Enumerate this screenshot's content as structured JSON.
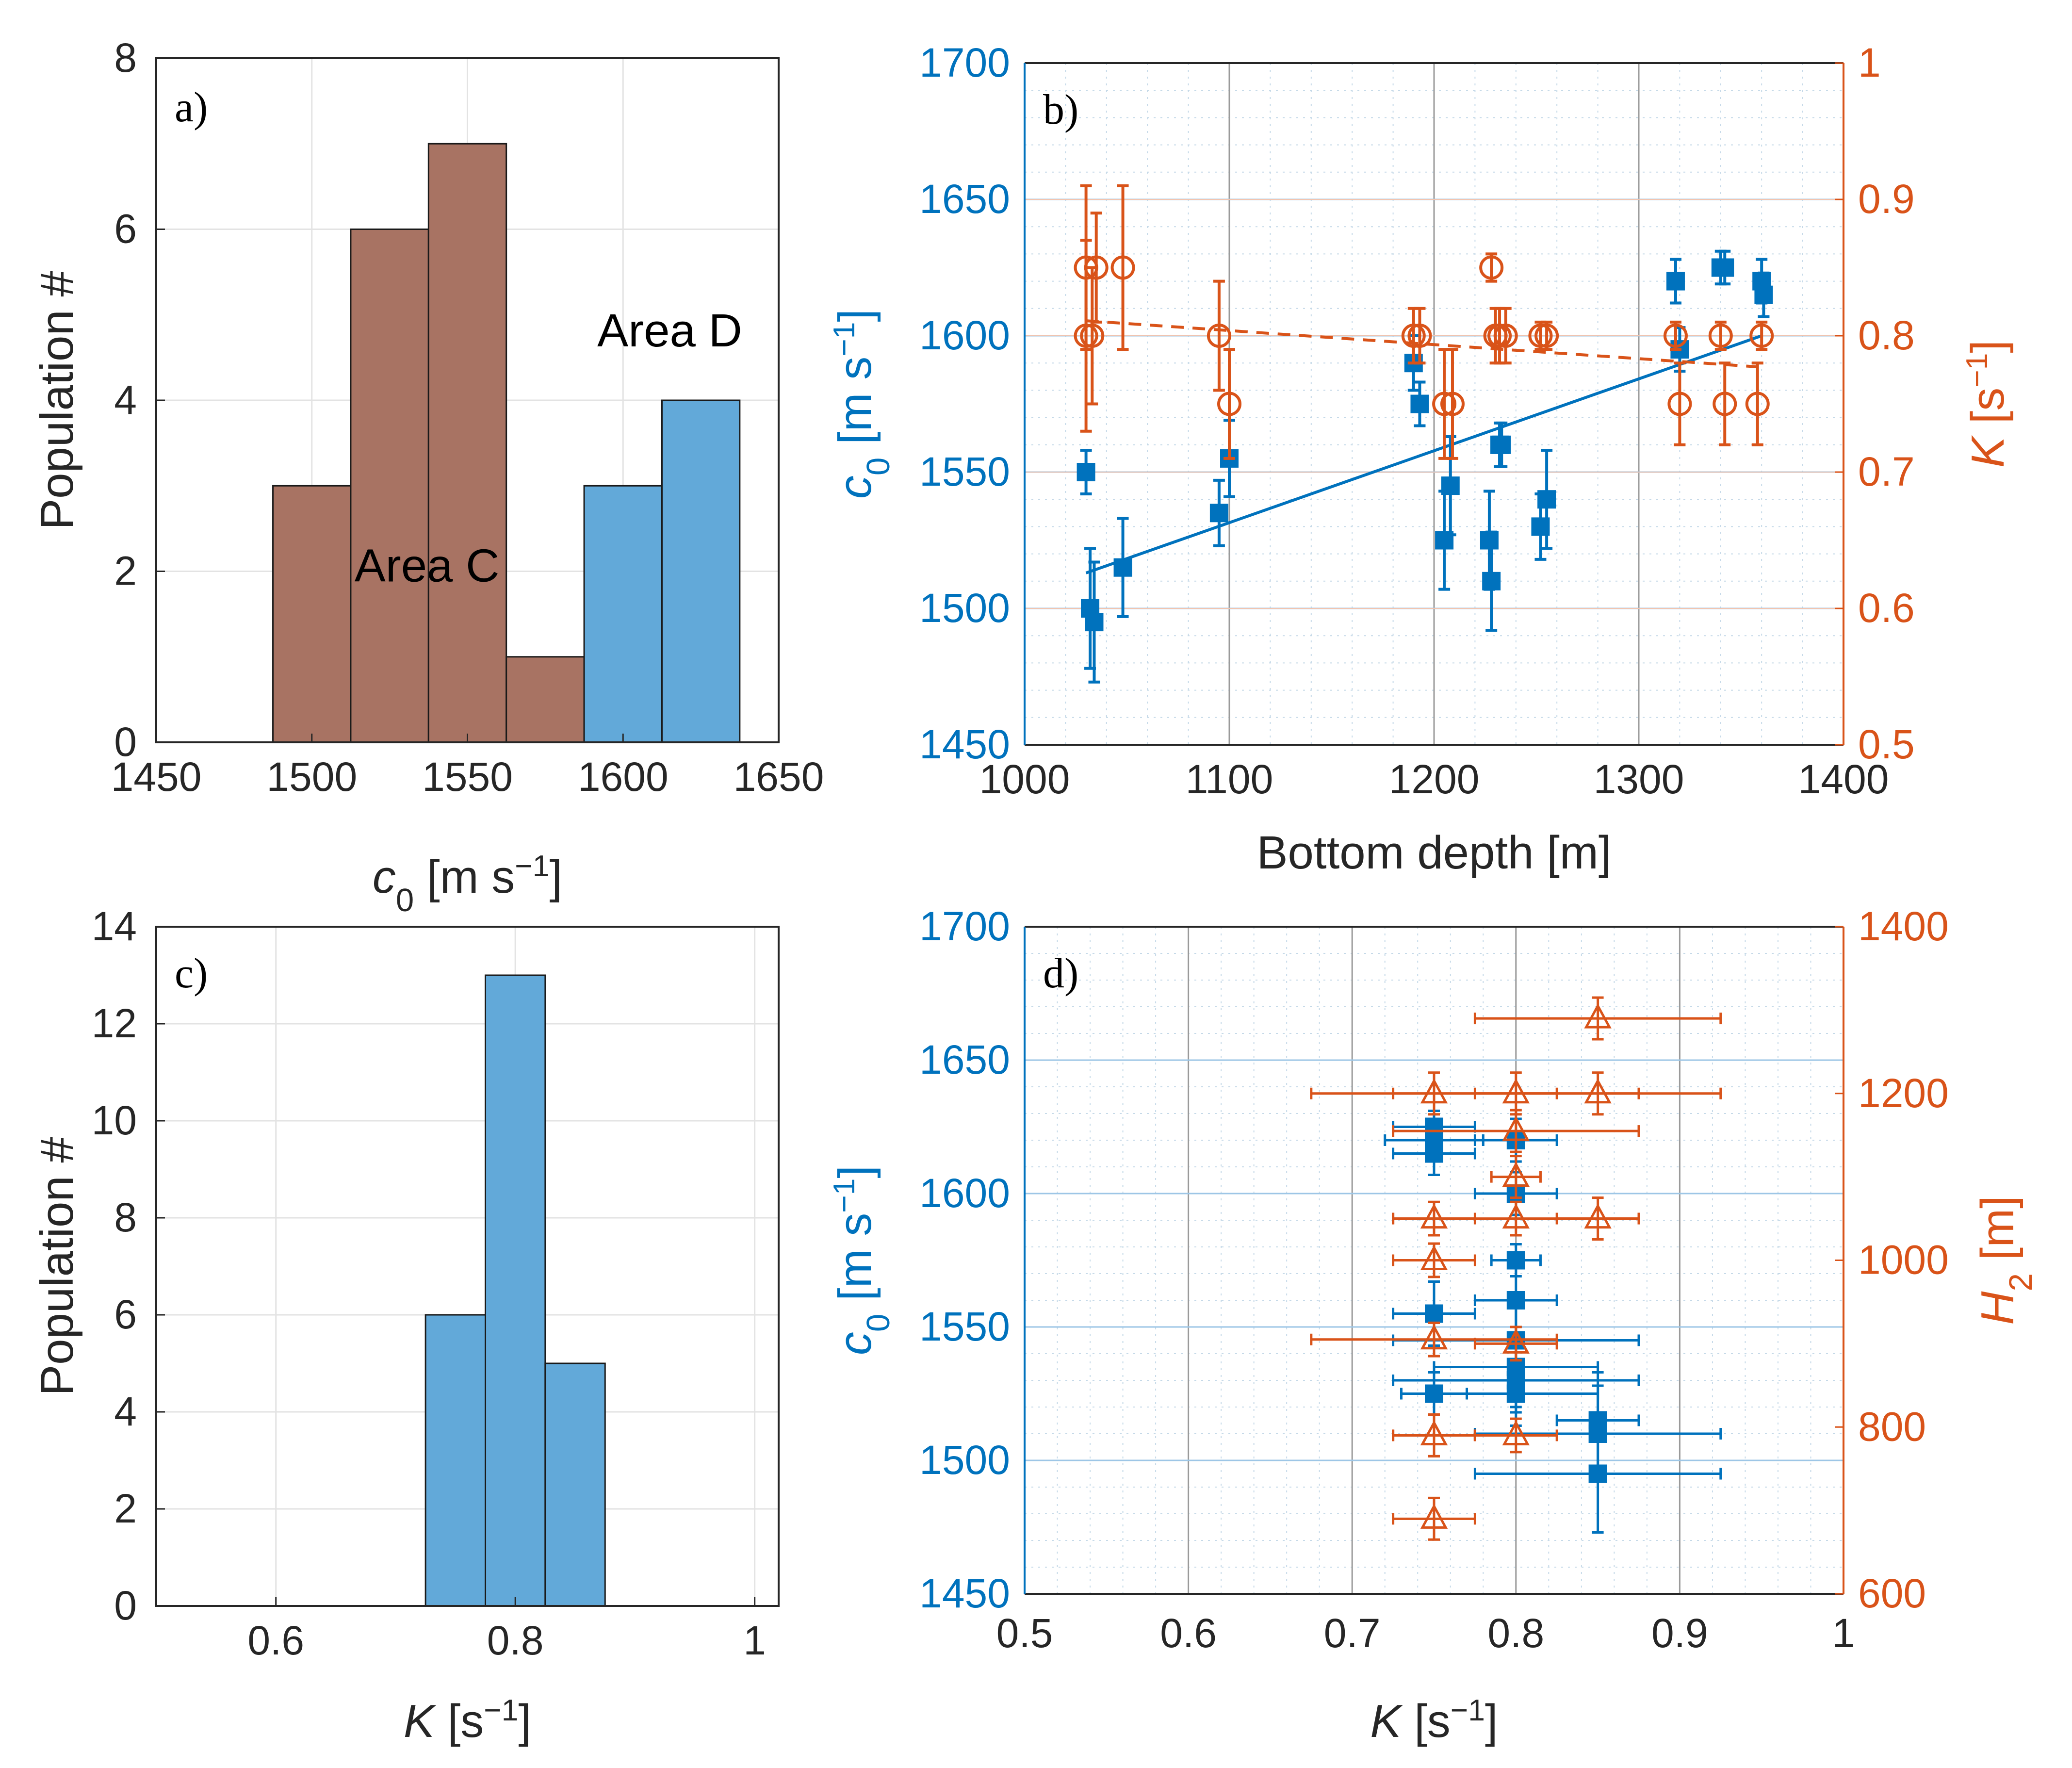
{
  "colors": {
    "blue": "#0072bd",
    "orange": "#d95319",
    "hist_brown": "#a87363",
    "hist_blue": "#62a9d9",
    "grid": "#e3e3e3",
    "axis": "#262626"
  },
  "chart_data": [
    {
      "panel": "a",
      "panel_label": "a)",
      "type": "bar",
      "subtype": "histogram",
      "xlabel": {
        "symbol": "c",
        "sub": "0",
        "units": "  [m s",
        "sup": "−1",
        "close": "]"
      },
      "ylabel": "Population #",
      "xlim": [
        1450,
        1650
      ],
      "ylim": [
        0,
        8
      ],
      "xticks": [
        1450,
        1500,
        1550,
        1600,
        1650
      ],
      "yticks": [
        0,
        2,
        4,
        6,
        8
      ],
      "bin_edges": [
        1487.5,
        1512.5,
        1537.5,
        1562.5,
        1587.5,
        1612.5,
        1637.5
      ],
      "series": [
        {
          "name": "Area C",
          "color_key": "hist_brown",
          "values": [
            3,
            6,
            7,
            1,
            1,
            0
          ]
        },
        {
          "name": "Area D",
          "color_key": "hist_blue",
          "values": [
            0,
            0,
            0,
            0,
            3,
            4
          ]
        }
      ],
      "annotations": [
        {
          "text": "Area C",
          "x": 1537,
          "y": 2.05
        },
        {
          "text": "Area D",
          "x": 1615,
          "y": 4.8
        }
      ]
    },
    {
      "panel": "b",
      "panel_label": "b)",
      "type": "scatter",
      "xlabel": "Bottom depth [m]",
      "xlim": [
        1000,
        1400
      ],
      "xticks": [
        1000,
        1100,
        1200,
        1300,
        1400
      ],
      "y_left": {
        "label": {
          "symbol": "c",
          "sub": "0",
          "units": "  [m s",
          "sup": "−1",
          "close": "]"
        },
        "lim": [
          1450,
          1700
        ],
        "ticks": [
          1450,
          1500,
          1550,
          1600,
          1650,
          1700
        ]
      },
      "y_right": {
        "label": {
          "symbol": "K",
          "units": "  [s",
          "sup": "−1",
          "close": "]"
        },
        "lim": [
          0.5,
          1.0
        ],
        "ticks": [
          "0.5",
          "0.6",
          "0.7",
          "0.8",
          "0.9",
          "1"
        ]
      },
      "series": [
        {
          "name": "c0",
          "axis": "left",
          "marker": "square",
          "color_key": "blue",
          "x": [
            1030,
            1032,
            1034,
            1048,
            1095,
            1100,
            1190,
            1193,
            1205,
            1208,
            1227,
            1228,
            1232,
            1233,
            1252,
            1255,
            1318,
            1320,
            1340,
            1342,
            1360,
            1361
          ],
          "y": [
            1550,
            1500,
            1495,
            1515,
            1535,
            1555,
            1590,
            1575,
            1525,
            1545,
            1525,
            1510,
            1560,
            1560,
            1530,
            1540,
            1620,
            1595,
            1625,
            1625,
            1620,
            1615
          ],
          "err": [
            8,
            22,
            22,
            18,
            12,
            14,
            10,
            8,
            18,
            18,
            18,
            18,
            8,
            8,
            12,
            18,
            8,
            8,
            6,
            6,
            8,
            8
          ]
        },
        {
          "name": "K",
          "axis": "right",
          "marker": "circle-open",
          "color_key": "orange",
          "x": [
            1030,
            1030,
            1033,
            1035,
            1048,
            1095,
            1100,
            1190,
            1193,
            1205,
            1209,
            1228,
            1230,
            1232,
            1235,
            1252,
            1255,
            1318,
            1320,
            1340,
            1342,
            1358,
            1360
          ],
          "y": [
            0.85,
            0.8,
            0.8,
            0.85,
            0.85,
            0.8,
            0.75,
            0.8,
            0.8,
            0.75,
            0.75,
            0.85,
            0.8,
            0.8,
            0.8,
            0.8,
            0.8,
            0.8,
            0.75,
            0.8,
            0.75,
            0.75,
            0.8
          ],
          "err": [
            0.06,
            0.07,
            0.05,
            0.04,
            0.06,
            0.04,
            0.04,
            0.02,
            0.02,
            0.04,
            0.04,
            0.01,
            0.02,
            0.02,
            0.02,
            0.01,
            0.01,
            0.01,
            0.03,
            0.01,
            0.03,
            0.03,
            0.01
          ]
        }
      ],
      "trend_lines": [
        {
          "name": "c0 linear fit",
          "axis": "left",
          "style": "solid",
          "color_key": "blue",
          "x": [
            1030,
            1360
          ],
          "y": [
            1513,
            1600
          ]
        },
        {
          "name": "K linear fit",
          "axis": "right",
          "style": "dashed",
          "color_key": "orange",
          "x": [
            1030,
            1360
          ],
          "y": [
            0.811,
            0.777
          ]
        }
      ]
    },
    {
      "panel": "c",
      "panel_label": "c)",
      "type": "bar",
      "subtype": "histogram",
      "xlabel": {
        "symbol": "K",
        "units": "  [s",
        "sup": "−1",
        "close": "]"
      },
      "ylabel": "Population #",
      "xlim": [
        0.5,
        1.02
      ],
      "ylim": [
        0,
        14
      ],
      "xticks": [
        "0.6",
        "0.8",
        "1"
      ],
      "xtick_values": [
        0.6,
        0.8,
        1.0
      ],
      "yticks": [
        0,
        2,
        4,
        6,
        8,
        10,
        12,
        14
      ],
      "bin_edges": [
        0.725,
        0.775,
        0.825,
        0.875
      ],
      "series": [
        {
          "name": "K",
          "color_key": "hist_blue",
          "values": [
            6,
            13,
            5
          ]
        }
      ]
    },
    {
      "panel": "d",
      "panel_label": "d)",
      "type": "scatter",
      "xlabel": {
        "symbol": "K",
        "units": "  [s",
        "sup": "−1",
        "close": "]"
      },
      "xlim": [
        0.5,
        1.0
      ],
      "xticks": [
        "0.5",
        "0.6",
        "0.7",
        "0.8",
        "0.9",
        "1"
      ],
      "xtick_values": [
        0.5,
        0.6,
        0.7,
        0.8,
        0.9,
        1.0
      ],
      "y_left": {
        "label": {
          "symbol": "c",
          "sub": "0",
          "units": "  [m s",
          "sup": "−1",
          "close": "]"
        },
        "lim": [
          1450,
          1700
        ],
        "ticks": [
          1450,
          1500,
          1550,
          1600,
          1650,
          1700
        ]
      },
      "y_right": {
        "label": {
          "symbol": "H",
          "sub": "2",
          "units": "  [m]"
        },
        "lim": [
          600,
          1400
        ],
        "ticks": [
          600,
          800,
          1000,
          1200,
          1400
        ]
      },
      "series": [
        {
          "name": "c0",
          "axis": "left",
          "marker": "square",
          "color_key": "blue",
          "x": [
            0.75,
            0.75,
            0.75,
            0.75,
            0.75,
            0.8,
            0.8,
            0.8,
            0.8,
            0.8,
            0.8,
            0.8,
            0.8,
            0.85,
            0.85,
            0.85
          ],
          "y": [
            1625,
            1620,
            1615,
            1555,
            1525,
            1600,
            1575,
            1560,
            1545,
            1535,
            1530,
            1525,
            1620,
            1515,
            1510,
            1495
          ],
          "xerr": [
            0.025,
            0.03,
            0.025,
            0.025,
            0.02,
            0.025,
            0.015,
            0.025,
            0.075,
            0.05,
            0.075,
            0.05,
            0.025,
            0.025,
            0.075,
            0.075
          ],
          "yerr": [
            6,
            8,
            8,
            12,
            8,
            8,
            6,
            12,
            18,
            15,
            12,
            12,
            8,
            18,
            18,
            22
          ]
        },
        {
          "name": "H2",
          "axis": "right",
          "marker": "triangle-open",
          "color_key": "orange",
          "x": [
            0.85,
            0.75,
            0.8,
            0.85,
            0.8,
            0.8,
            0.75,
            0.8,
            0.85,
            0.75,
            0.75,
            0.8,
            0.75,
            0.75,
            0.8,
            0.75
          ],
          "y": [
            1290,
            1200,
            1200,
            1200,
            1155,
            1100,
            1050,
            1050,
            1050,
            1000,
            905,
            900,
            790,
            790,
            790,
            690
          ],
          "xerr": [
            0.075,
            0.075,
            0.075,
            0.075,
            0.075,
            0.015,
            0.025,
            0.075,
            0.025,
            0.025,
            0.075,
            0.025,
            0.025,
            0.025,
            0.025,
            0.025
          ],
          "yerr": [
            25,
            25,
            25,
            25,
            25,
            25,
            20,
            20,
            25,
            20,
            20,
            20,
            25,
            25,
            20,
            25
          ]
        }
      ]
    }
  ]
}
